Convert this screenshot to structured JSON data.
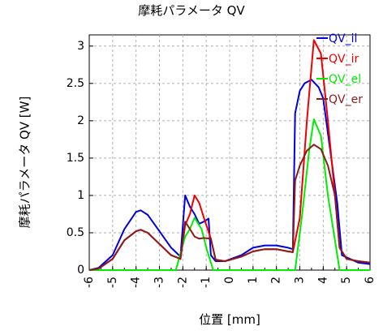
{
  "chart_data": {
    "type": "line",
    "title": "摩耗パラメータ QV",
    "xlabel": "位置 [mm]",
    "ylabel": "摩耗パラメータ QV [W]",
    "xlim": [
      -6,
      6
    ],
    "ylim": [
      0,
      3.15
    ],
    "x_ticks": [
      "-6",
      "-5",
      "-4",
      "-3",
      "-2",
      "-1",
      "0",
      "1",
      "2",
      "3",
      "4",
      "5",
      "6"
    ],
    "y_ticks": [
      "0",
      "0.5",
      "1",
      "1.5",
      "2",
      "2.5",
      "3"
    ],
    "grid": true,
    "legend_position": "top-right",
    "series": [
      {
        "name": "QV_il",
        "color": "#0000dd",
        "points": [
          [
            -6,
            0
          ],
          [
            -5.6,
            0.03
          ],
          [
            -5,
            0.2
          ],
          [
            -4.5,
            0.55
          ],
          [
            -4,
            0.78
          ],
          [
            -3.8,
            0.8
          ],
          [
            -3.5,
            0.74
          ],
          [
            -3,
            0.52
          ],
          [
            -2.5,
            0.3
          ],
          [
            -2.1,
            0.18
          ],
          [
            -1.9,
            1.0
          ],
          [
            -1.7,
            0.85
          ],
          [
            -1.5,
            0.75
          ],
          [
            -1.3,
            0.62
          ],
          [
            -1.1,
            0.65
          ],
          [
            -0.9,
            0.69
          ],
          [
            -0.8,
            0.2
          ],
          [
            -0.6,
            0.12
          ],
          [
            -0.2,
            0.12
          ],
          [
            0.5,
            0.2
          ],
          [
            1,
            0.3
          ],
          [
            1.5,
            0.33
          ],
          [
            2,
            0.33
          ],
          [
            2.5,
            0.3
          ],
          [
            2.7,
            0.28
          ],
          [
            2.8,
            2.1
          ],
          [
            3,
            2.4
          ],
          [
            3.2,
            2.5
          ],
          [
            3.5,
            2.55
          ],
          [
            3.8,
            2.45
          ],
          [
            4,
            2.3
          ],
          [
            4.3,
            1.6
          ],
          [
            4.6,
            0.9
          ],
          [
            4.8,
            0.2
          ],
          [
            5,
            0.17
          ],
          [
            5.5,
            0.1
          ],
          [
            6,
            0.08
          ]
        ]
      },
      {
        "name": "QV_ir",
        "color": "#ee0000",
        "points": [
          [
            -6,
            0
          ],
          [
            -5.6,
            0.02
          ],
          [
            -5,
            0.15
          ],
          [
            -4.5,
            0.4
          ],
          [
            -4,
            0.52
          ],
          [
            -3.8,
            0.54
          ],
          [
            -3.5,
            0.5
          ],
          [
            -3,
            0.35
          ],
          [
            -2.5,
            0.2
          ],
          [
            -2.1,
            0.15
          ],
          [
            -1.9,
            0.6
          ],
          [
            -1.7,
            0.75
          ],
          [
            -1.5,
            1.0
          ],
          [
            -1.3,
            0.9
          ],
          [
            -1.1,
            0.7
          ],
          [
            -0.8,
            0.42
          ],
          [
            -0.6,
            0.14
          ],
          [
            -0.2,
            0.12
          ],
          [
            0.5,
            0.18
          ],
          [
            1,
            0.25
          ],
          [
            1.5,
            0.28
          ],
          [
            2,
            0.28
          ],
          [
            2.5,
            0.25
          ],
          [
            2.7,
            0.24
          ],
          [
            3,
            0.7
          ],
          [
            3.3,
            2.0
          ],
          [
            3.6,
            3.08
          ],
          [
            3.9,
            2.9
          ],
          [
            4.2,
            2.0
          ],
          [
            4.5,
            1.0
          ],
          [
            4.7,
            0.3
          ],
          [
            5,
            0.15
          ],
          [
            5.5,
            0.12
          ],
          [
            6,
            0.1
          ]
        ]
      },
      {
        "name": "QV_el",
        "color": "#00ee00",
        "points": [
          [
            -6,
            0
          ],
          [
            -2.7,
            0
          ],
          [
            -2.3,
            0
          ],
          [
            -1.9,
            0.45
          ],
          [
            -1.7,
            0.55
          ],
          [
            -1.5,
            0.7
          ],
          [
            -1.2,
            0.55
          ],
          [
            -1.0,
            0.3
          ],
          [
            -0.8,
            0.1
          ],
          [
            -0.7,
            0
          ],
          [
            2.6,
            0
          ],
          [
            2.8,
            0
          ],
          [
            3.1,
            0.75
          ],
          [
            3.4,
            1.6
          ],
          [
            3.6,
            2.02
          ],
          [
            3.9,
            1.8
          ],
          [
            4.2,
            1.0
          ],
          [
            4.5,
            0.4
          ],
          [
            4.7,
            0
          ],
          [
            6,
            0
          ]
        ]
      },
      {
        "name": "QV_er",
        "color": "#8b1a1a",
        "points": [
          [
            -6,
            0
          ],
          [
            -5.6,
            0.02
          ],
          [
            -5,
            0.15
          ],
          [
            -4.5,
            0.4
          ],
          [
            -4,
            0.52
          ],
          [
            -3.8,
            0.54
          ],
          [
            -3.5,
            0.5
          ],
          [
            -3,
            0.35
          ],
          [
            -2.5,
            0.2
          ],
          [
            -2.1,
            0.15
          ],
          [
            -1.9,
            0.65
          ],
          [
            -1.7,
            0.55
          ],
          [
            -1.5,
            0.45
          ],
          [
            -1.3,
            0.42
          ],
          [
            -1.1,
            0.43
          ],
          [
            -0.8,
            0.42
          ],
          [
            -0.6,
            0.14
          ],
          [
            -0.2,
            0.12
          ],
          [
            0.5,
            0.18
          ],
          [
            1,
            0.25
          ],
          [
            1.5,
            0.28
          ],
          [
            2,
            0.28
          ],
          [
            2.5,
            0.25
          ],
          [
            2.7,
            0.24
          ],
          [
            2.8,
            1.2
          ],
          [
            3,
            1.4
          ],
          [
            3.3,
            1.6
          ],
          [
            3.6,
            1.68
          ],
          [
            3.9,
            1.62
          ],
          [
            4.2,
            1.4
          ],
          [
            4.5,
            1.0
          ],
          [
            4.7,
            0.3
          ],
          [
            5,
            0.15
          ],
          [
            5.5,
            0.12
          ],
          [
            6,
            0.1
          ]
        ]
      }
    ]
  }
}
